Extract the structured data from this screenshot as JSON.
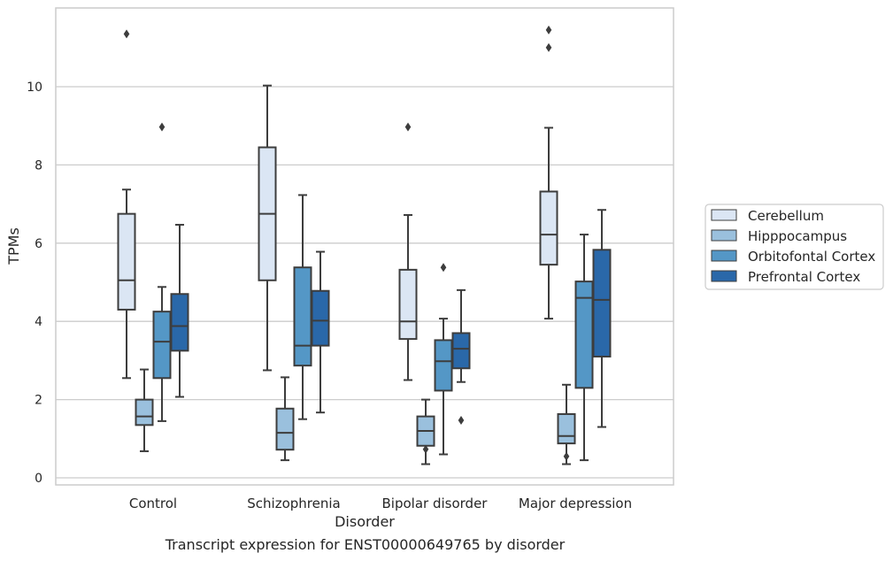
{
  "chart_data": {
    "type": "box",
    "xlabel": "Disorder",
    "ylabel": "TPMs",
    "caption": "Transcript expression for ENST00000649765 by disorder",
    "ylim": [
      -0.15,
      12.0
    ],
    "yticks": [
      "0",
      "2",
      "4",
      "6",
      "8",
      "10"
    ],
    "grid": "horizontal",
    "legend_position": "right",
    "categories": [
      "Control",
      "Schizophrenia",
      "Bipolar disorder",
      "Major depression"
    ],
    "series": [
      {
        "name": "Cerebellum",
        "color": "#dbe6f4",
        "boxes": [
          {
            "whisker_low": 2.55,
            "q1": 4.3,
            "median": 5.05,
            "q3": 6.75,
            "whisker_high": 7.37,
            "outliers": [
              11.35
            ]
          },
          {
            "whisker_low": 2.75,
            "q1": 5.05,
            "median": 6.75,
            "q3": 8.45,
            "whisker_high": 10.03,
            "outliers": []
          },
          {
            "whisker_low": 2.5,
            "q1": 3.55,
            "median": 4.0,
            "q3": 5.32,
            "whisker_high": 6.72,
            "outliers": [
              8.97
            ]
          },
          {
            "whisker_low": 4.07,
            "q1": 5.45,
            "median": 6.22,
            "q3": 7.32,
            "whisker_high": 8.95,
            "outliers": [
              11.0,
              11.45
            ]
          }
        ]
      },
      {
        "name": "Hipppocampus",
        "color": "#9ac0dd",
        "boxes": [
          {
            "whisker_low": 0.68,
            "q1": 1.35,
            "median": 1.57,
            "q3": 2.0,
            "whisker_high": 2.77,
            "outliers": []
          },
          {
            "whisker_low": 0.45,
            "q1": 0.72,
            "median": 1.15,
            "q3": 1.77,
            "whisker_high": 2.57,
            "outliers": []
          },
          {
            "whisker_low": 0.35,
            "q1": 0.82,
            "median": 1.2,
            "q3": 1.57,
            "whisker_high": 2.0,
            "outliers": [
              0.73
            ]
          },
          {
            "whisker_low": 0.35,
            "q1": 0.88,
            "median": 1.07,
            "q3": 1.63,
            "whisker_high": 2.38,
            "outliers": [
              0.55
            ]
          }
        ]
      },
      {
        "name": "Orbitofontal Cortex",
        "color": "#5497c6",
        "boxes": [
          {
            "whisker_low": 1.45,
            "q1": 2.55,
            "median": 3.48,
            "q3": 4.25,
            "whisker_high": 4.88,
            "outliers": [
              8.97
            ]
          },
          {
            "whisker_low": 1.5,
            "q1": 2.87,
            "median": 3.38,
            "q3": 5.38,
            "whisker_high": 7.23,
            "outliers": []
          },
          {
            "whisker_low": 0.6,
            "q1": 2.23,
            "median": 2.98,
            "q3": 3.52,
            "whisker_high": 4.07,
            "outliers": [
              5.38
            ]
          },
          {
            "whisker_low": 0.45,
            "q1": 2.3,
            "median": 4.6,
            "q3": 5.02,
            "whisker_high": 6.22,
            "outliers": []
          }
        ]
      },
      {
        "name": "Prefrontal Cortex",
        "color": "#2a68a9",
        "boxes": [
          {
            "whisker_low": 2.07,
            "q1": 3.25,
            "median": 3.88,
            "q3": 4.7,
            "whisker_high": 6.47,
            "outliers": []
          },
          {
            "whisker_low": 1.67,
            "q1": 3.38,
            "median": 4.02,
            "q3": 4.78,
            "whisker_high": 5.78,
            "outliers": []
          },
          {
            "whisker_low": 2.45,
            "q1": 2.8,
            "median": 3.3,
            "q3": 3.7,
            "whisker_high": 4.8,
            "outliers": [
              1.47
            ]
          },
          {
            "whisker_low": 1.3,
            "q1": 3.1,
            "median": 4.55,
            "q3": 5.83,
            "whisker_high": 6.85,
            "outliers": []
          }
        ]
      }
    ]
  },
  "colors": {
    "line": "#3d3d3d",
    "grid": "#cccccc",
    "axis_frame": "#cccccc",
    "text": "#262626"
  }
}
